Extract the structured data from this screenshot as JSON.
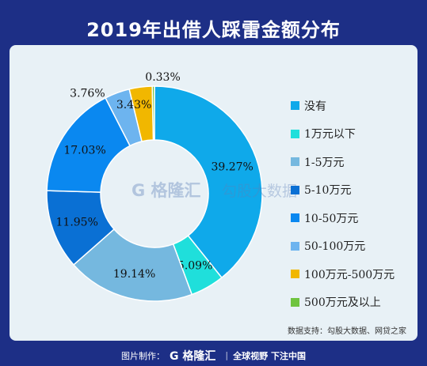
{
  "title": "2019年出借人踩雷金额分布",
  "watermarks": {
    "logo": "G 格隆汇",
    "logo2": "勾股大数据"
  },
  "source_note": "数据支持：勾股大数据、网贷之家",
  "footer": {
    "made_by": "图片制作：",
    "logo": "G 格隆汇",
    "slogan": "全球视野 下注中国"
  },
  "chart_data": {
    "type": "pie",
    "style": "donut",
    "title": "2019年出借人踩雷金额分布",
    "legend_position": "right",
    "categories": [
      "没有",
      "1万元以下",
      "1-5万元",
      "5-10万元",
      "10-50万元",
      "50-100万元",
      "100万元-500万元",
      "500万元及以上"
    ],
    "values": [
      39.27,
      5.09,
      19.14,
      11.95,
      17.03,
      3.76,
      3.43,
      0.33
    ],
    "labels": [
      "39.27%",
      "5.09%",
      "19.14%",
      "11.95%",
      "17.03%",
      "3.76%",
      "3.43%",
      "0.33%"
    ],
    "colors": [
      "#0fa9ea",
      "#1fdfdb",
      "#75b8df",
      "#0a70d4",
      "#0a88f0",
      "#6db4ef",
      "#f1b700",
      "#6fc43f"
    ]
  }
}
